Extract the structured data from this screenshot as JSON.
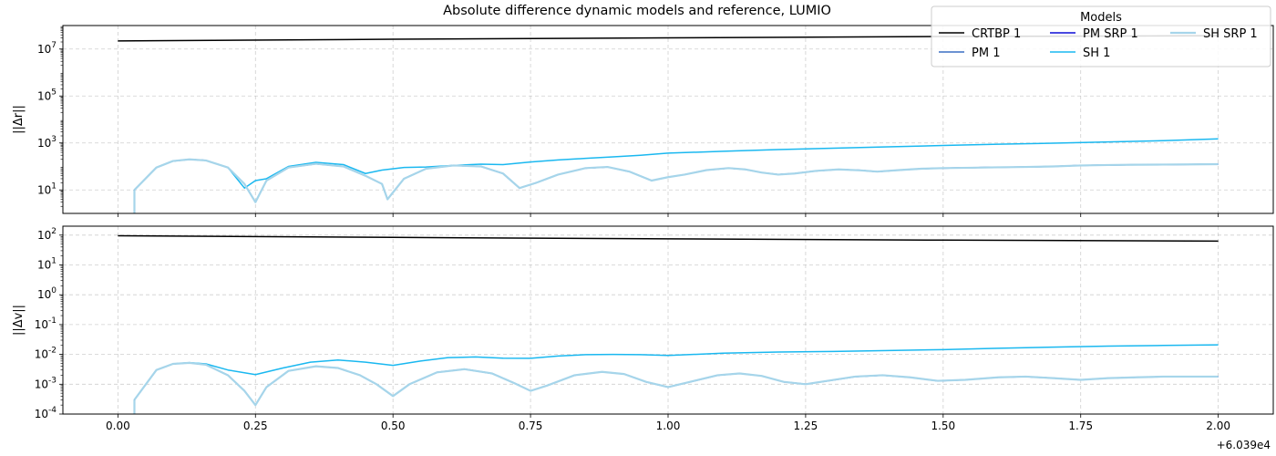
{
  "chart_data": {
    "type": "line",
    "title": "Absolute difference dynamic models and reference, LUMIO",
    "x_offset_label": "+6.039e4",
    "x_ticks": [
      0.0,
      0.25,
      0.5,
      0.75,
      1.0,
      1.25,
      1.5,
      1.75,
      2.0
    ],
    "x_tick_labels": [
      "0.00",
      "0.25",
      "0.50",
      "0.75",
      "1.00",
      "1.25",
      "1.50",
      "1.75",
      "2.00"
    ],
    "xlim": [
      -0.1,
      2.1
    ],
    "legend": {
      "title": "Models",
      "location": "top-right",
      "entries": [
        {
          "name": "CRTBP 1",
          "color": "#000000"
        },
        {
          "name": "PM 1",
          "color": "#3a6fc4"
        },
        {
          "name": "PM SRP 1",
          "color": "#0b0bd6"
        },
        {
          "name": "SH 1",
          "color": "#1ab8f0"
        },
        {
          "name": "SH SRP 1",
          "color": "#a6d5ea"
        }
      ]
    },
    "panels": [
      {
        "ylabel": "||Δr||",
        "yscale": "log",
        "ylim_exp": [
          0,
          8
        ],
        "y_ticks_exp": [
          1,
          3,
          5,
          7
        ],
        "y_tick_labels": [
          "10^1",
          "10^3",
          "10^5",
          "10^7"
        ],
        "grid": true,
        "series": [
          {
            "name": "CRTBP 1",
            "color": "#000000",
            "x": [
              0,
              0.5,
              1.0,
              1.5,
              2.0
            ],
            "y": [
              22000000,
              26000000,
              30000000,
              34000000,
              37000000
            ]
          },
          {
            "name": "PM 1",
            "color": "#3a6fc4",
            "x": [
              0.03,
              0.07,
              0.1,
              0.13,
              0.16,
              0.2,
              0.23,
              0.25,
              0.27,
              0.31,
              0.36,
              0.41,
              0.45,
              0.48,
              0.49,
              0.52,
              0.56,
              0.61,
              0.66,
              0.7,
              0.73,
              0.76,
              0.8,
              0.85,
              0.89,
              0.93,
              0.97,
              1.0,
              1.03,
              1.07,
              1.11,
              1.14,
              1.17,
              1.2,
              1.23,
              1.27,
              1.31,
              1.35,
              1.38,
              1.42,
              1.46,
              1.5,
              1.55,
              1.6,
              1.65,
              1.7,
              1.75,
              1.8,
              1.85,
              1.9,
              1.95,
              2.0
            ],
            "y": [
              10,
              90,
              170,
              200,
              180,
              90,
              18,
              3,
              25,
              90,
              130,
              100,
              40,
              18,
              4,
              30,
              80,
              110,
              100,
              50,
              12,
              20,
              45,
              85,
              95,
              60,
              25,
              35,
              45,
              70,
              85,
              75,
              55,
              45,
              50,
              65,
              75,
              68,
              60,
              70,
              80,
              85,
              88,
              92,
              95,
              100,
              110,
              115,
              118,
              120,
              122,
              125
            ]
          },
          {
            "name": "PM SRP 1",
            "color": "#0b0bd6",
            "x": [
              0.03,
              0.07,
              0.1,
              0.13,
              0.16,
              0.2,
              0.23,
              0.25,
              0.27,
              0.31,
              0.36,
              0.41,
              0.45,
              0.48,
              0.49,
              0.52,
              0.56,
              0.61,
              0.66,
              0.7,
              0.73,
              0.76,
              0.8,
              0.85,
              0.89,
              0.93,
              0.97,
              1.0,
              1.03,
              1.07,
              1.11,
              1.14,
              1.17,
              1.2,
              1.23,
              1.27,
              1.31,
              1.35,
              1.38,
              1.42,
              1.46,
              1.5,
              1.55,
              1.6,
              1.65,
              1.7,
              1.75,
              1.8,
              1.85,
              1.9,
              1.95,
              2.0
            ],
            "y": [
              10,
              90,
              170,
              200,
              180,
              90,
              18,
              3,
              25,
              90,
              130,
              100,
              40,
              18,
              4,
              30,
              80,
              110,
              100,
              50,
              12,
              20,
              45,
              85,
              95,
              60,
              25,
              35,
              45,
              70,
              85,
              75,
              55,
              45,
              50,
              65,
              75,
              68,
              60,
              70,
              80,
              85,
              88,
              92,
              95,
              100,
              110,
              115,
              118,
              120,
              122,
              125
            ]
          },
          {
            "name": "SH 1",
            "color": "#1ab8f0",
            "x": [
              0.03,
              0.07,
              0.1,
              0.13,
              0.16,
              0.2,
              0.23,
              0.25,
              0.27,
              0.31,
              0.36,
              0.41,
              0.45,
              0.48,
              0.52,
              0.56,
              0.61,
              0.66,
              0.7,
              0.75,
              0.8,
              0.85,
              0.9,
              0.95,
              1.0,
              1.1,
              1.2,
              1.3,
              1.4,
              1.5,
              1.6,
              1.7,
              1.8,
              1.9,
              2.0
            ],
            "y": [
              10,
              90,
              170,
              200,
              180,
              90,
              12,
              25,
              30,
              100,
              150,
              120,
              50,
              70,
              90,
              95,
              110,
              125,
              120,
              155,
              190,
              220,
              255,
              300,
              370,
              440,
              520,
              600,
              680,
              780,
              880,
              980,
              1100,
              1250,
              1500
            ]
          },
          {
            "name": "SH SRP 1",
            "color": "#a6d5ea",
            "x": [
              0.03,
              0.07,
              0.1,
              0.13,
              0.16,
              0.2,
              0.23,
              0.25,
              0.27,
              0.31,
              0.36,
              0.41,
              0.45,
              0.48,
              0.49,
              0.52,
              0.56,
              0.61,
              0.66,
              0.7,
              0.73,
              0.76,
              0.8,
              0.85,
              0.89,
              0.93,
              0.97,
              1.0,
              1.03,
              1.07,
              1.11,
              1.14,
              1.17,
              1.2,
              1.23,
              1.27,
              1.31,
              1.35,
              1.38,
              1.42,
              1.46,
              1.5,
              1.55,
              1.6,
              1.65,
              1.7,
              1.75,
              1.8,
              1.85,
              1.9,
              1.95,
              2.0
            ],
            "y": [
              10,
              90,
              170,
              200,
              180,
              90,
              18,
              3,
              25,
              90,
              130,
              100,
              40,
              18,
              4,
              30,
              80,
              110,
              100,
              50,
              12,
              20,
              45,
              85,
              95,
              60,
              25,
              35,
              45,
              70,
              85,
              75,
              55,
              45,
              50,
              65,
              75,
              68,
              60,
              70,
              80,
              85,
              88,
              92,
              95,
              100,
              110,
              115,
              118,
              120,
              122,
              125
            ]
          }
        ]
      },
      {
        "ylabel": "||Δv||",
        "yscale": "log",
        "ylim_exp": [
          -4,
          2.3
        ],
        "y_ticks_exp": [
          -4,
          -3,
          -2,
          -1,
          0,
          1,
          2
        ],
        "y_tick_labels": [
          "10^-4",
          "10^-3",
          "10^-2",
          "10^-1",
          "10^0",
          "10^1",
          "10^2"
        ],
        "grid": true,
        "series": [
          {
            "name": "CRTBP 1",
            "color": "#000000",
            "x": [
              0,
              0.5,
              1.0,
              1.5,
              2.0
            ],
            "y": [
              95,
              84,
              75,
              68,
              63
            ]
          },
          {
            "name": "PM 1",
            "color": "#3a6fc4",
            "x": [
              0.03,
              0.07,
              0.1,
              0.13,
              0.16,
              0.2,
              0.23,
              0.25,
              0.27,
              0.31,
              0.36,
              0.4,
              0.44,
              0.47,
              0.5,
              0.53,
              0.58,
              0.63,
              0.68,
              0.72,
              0.75,
              0.78,
              0.83,
              0.88,
              0.92,
              0.96,
              1.0,
              1.04,
              1.09,
              1.13,
              1.17,
              1.21,
              1.25,
              1.29,
              1.34,
              1.39,
              1.44,
              1.49,
              1.54,
              1.6,
              1.65,
              1.7,
              1.75,
              1.8,
              1.85,
              1.9,
              1.95,
              2.0
            ],
            "y": [
              0.0003,
              0.003,
              0.0048,
              0.0052,
              0.0045,
              0.002,
              0.0006,
              0.0002,
              0.0008,
              0.0028,
              0.004,
              0.0035,
              0.002,
              0.001,
              0.0004,
              0.001,
              0.0025,
              0.0032,
              0.0023,
              0.0011,
              0.0006,
              0.0009,
              0.002,
              0.0026,
              0.0022,
              0.0012,
              0.0008,
              0.0012,
              0.002,
              0.0023,
              0.0019,
              0.0012,
              0.001,
              0.0013,
              0.0018,
              0.002,
              0.0017,
              0.0013,
              0.0014,
              0.0017,
              0.0018,
              0.0016,
              0.0014,
              0.0016,
              0.0017,
              0.0018,
              0.0018,
              0.0018
            ]
          },
          {
            "name": "PM SRP 1",
            "color": "#0b0bd6",
            "x": [
              0.03,
              0.07,
              0.1,
              0.13,
              0.16,
              0.2,
              0.23,
              0.25,
              0.27,
              0.31,
              0.36,
              0.4,
              0.44,
              0.47,
              0.5,
              0.53,
              0.58,
              0.63,
              0.68,
              0.72,
              0.75,
              0.78,
              0.83,
              0.88,
              0.92,
              0.96,
              1.0,
              1.04,
              1.09,
              1.13,
              1.17,
              1.21,
              1.25,
              1.29,
              1.34,
              1.39,
              1.44,
              1.49,
              1.54,
              1.6,
              1.65,
              1.7,
              1.75,
              1.8,
              1.85,
              1.9,
              1.95,
              2.0
            ],
            "y": [
              0.0003,
              0.003,
              0.0048,
              0.0052,
              0.0045,
              0.002,
              0.0006,
              0.0002,
              0.0008,
              0.0028,
              0.004,
              0.0035,
              0.002,
              0.001,
              0.0004,
              0.001,
              0.0025,
              0.0032,
              0.0023,
              0.0011,
              0.0006,
              0.0009,
              0.002,
              0.0026,
              0.0022,
              0.0012,
              0.0008,
              0.0012,
              0.002,
              0.0023,
              0.0019,
              0.0012,
              0.001,
              0.0013,
              0.0018,
              0.002,
              0.0017,
              0.0013,
              0.0014,
              0.0017,
              0.0018,
              0.0016,
              0.0014,
              0.0016,
              0.0017,
              0.0018,
              0.0018,
              0.0018
            ]
          },
          {
            "name": "SH 1",
            "color": "#1ab8f0",
            "x": [
              0.03,
              0.07,
              0.1,
              0.13,
              0.16,
              0.2,
              0.25,
              0.3,
              0.35,
              0.4,
              0.45,
              0.5,
              0.55,
              0.6,
              0.65,
              0.7,
              0.75,
              0.8,
              0.85,
              0.9,
              0.95,
              1.0,
              1.1,
              1.2,
              1.3,
              1.4,
              1.5,
              1.6,
              1.7,
              1.8,
              1.9,
              2.0
            ],
            "y": [
              0.0003,
              0.003,
              0.0048,
              0.0053,
              0.0048,
              0.003,
              0.0021,
              0.0035,
              0.0055,
              0.0065,
              0.0055,
              0.0043,
              0.006,
              0.0078,
              0.0082,
              0.0075,
              0.0074,
              0.0088,
              0.0098,
              0.01,
              0.0098,
              0.0092,
              0.011,
              0.012,
              0.0125,
              0.0135,
              0.0145,
              0.016,
              0.0175,
              0.019,
              0.02,
              0.021
            ]
          },
          {
            "name": "SH SRP 1",
            "color": "#a6d5ea",
            "x": [
              0.03,
              0.07,
              0.1,
              0.13,
              0.16,
              0.2,
              0.23,
              0.25,
              0.27,
              0.31,
              0.36,
              0.4,
              0.44,
              0.47,
              0.5,
              0.53,
              0.58,
              0.63,
              0.68,
              0.72,
              0.75,
              0.78,
              0.83,
              0.88,
              0.92,
              0.96,
              1.0,
              1.04,
              1.09,
              1.13,
              1.17,
              1.21,
              1.25,
              1.29,
              1.34,
              1.39,
              1.44,
              1.49,
              1.54,
              1.6,
              1.65,
              1.7,
              1.75,
              1.8,
              1.85,
              1.9,
              1.95,
              2.0
            ],
            "y": [
              0.0003,
              0.003,
              0.0048,
              0.0052,
              0.0045,
              0.002,
              0.0006,
              0.0002,
              0.0008,
              0.0028,
              0.004,
              0.0035,
              0.002,
              0.001,
              0.0004,
              0.001,
              0.0025,
              0.0032,
              0.0023,
              0.0011,
              0.0006,
              0.0009,
              0.002,
              0.0026,
              0.0022,
              0.0012,
              0.0008,
              0.0012,
              0.002,
              0.0023,
              0.0019,
              0.0012,
              0.001,
              0.0013,
              0.0018,
              0.002,
              0.0017,
              0.0013,
              0.0014,
              0.0017,
              0.0018,
              0.0016,
              0.0014,
              0.0016,
              0.0017,
              0.0018,
              0.0018,
              0.0018
            ]
          }
        ]
      }
    ]
  }
}
